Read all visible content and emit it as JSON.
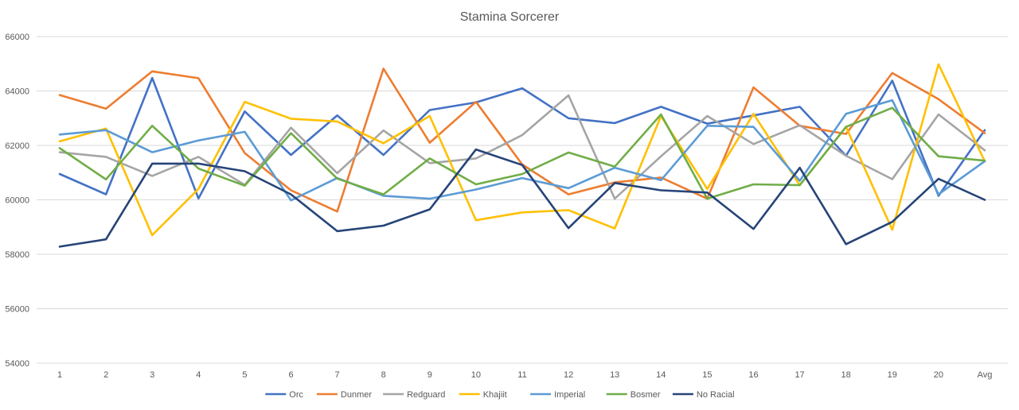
{
  "chart_data": {
    "type": "line",
    "title": "Stamina Sorcerer",
    "xlabel": "",
    "ylabel": "",
    "categories": [
      "1",
      "2",
      "3",
      "4",
      "5",
      "6",
      "7",
      "8",
      "9",
      "10",
      "11",
      "12",
      "13",
      "14",
      "15",
      "16",
      "17",
      "18",
      "19",
      "20",
      "Avg"
    ],
    "ylim": [
      54000,
      66000
    ],
    "yticks": [
      54000,
      56000,
      58000,
      60000,
      62000,
      64000,
      66000
    ],
    "grid": true,
    "legend": "bottom",
    "series": [
      {
        "name": "Orc",
        "color": "#4472c4",
        "values": [
          60950,
          60200,
          64480,
          60050,
          63250,
          61650,
          63100,
          61650,
          63300,
          63580,
          64100,
          63000,
          62820,
          63420,
          62800,
          63100,
          63420,
          61620,
          64380,
          60150,
          62560
        ]
      },
      {
        "name": "Dunmer",
        "color": "#ed7d31",
        "values": [
          63850,
          63350,
          64720,
          64470,
          61720,
          60350,
          59570,
          64820,
          62100,
          63600,
          61300,
          60200,
          60640,
          60820,
          60040,
          64130,
          62720,
          62420,
          64660,
          63700,
          62450
        ]
      },
      {
        "name": "Redguard",
        "color": "#a5a5a5",
        "values": [
          61750,
          61580,
          60880,
          61580,
          60550,
          62650,
          60980,
          62550,
          61350,
          61520,
          62380,
          63840,
          60040,
          61600,
          63080,
          62050,
          62740,
          61620,
          60760,
          63140,
          61820
        ]
      },
      {
        "name": "Khajiit",
        "color": "#ffc000",
        "values": [
          62150,
          62620,
          58700,
          60400,
          63600,
          62980,
          62880,
          62080,
          63080,
          59250,
          59540,
          59620,
          58950,
          63080,
          60400,
          63160,
          60540,
          62680,
          58900,
          64980,
          61420
        ]
      },
      {
        "name": "Imperial",
        "color": "#5b9bd5",
        "values": [
          62400,
          62560,
          61750,
          62180,
          62500,
          59980,
          60800,
          60150,
          60040,
          60380,
          60800,
          60430,
          61180,
          60720,
          62720,
          62680,
          60700,
          63160,
          63660,
          60200,
          61420
        ]
      },
      {
        "name": "Bosmer",
        "color": "#70ad47",
        "values": [
          61900,
          60750,
          62720,
          61150,
          60520,
          62450,
          60780,
          60200,
          61520,
          60570,
          60950,
          61740,
          61220,
          63140,
          60040,
          60570,
          60540,
          62680,
          63380,
          61600,
          61440
        ]
      },
      {
        "name": "No Racial",
        "color": "#264478",
        "values": [
          58280,
          58550,
          61330,
          61330,
          61050,
          60200,
          58850,
          59050,
          59650,
          61850,
          61280,
          58960,
          60620,
          60350,
          60270,
          58930,
          61180,
          58370,
          59190,
          60770,
          60000
        ]
      }
    ]
  }
}
